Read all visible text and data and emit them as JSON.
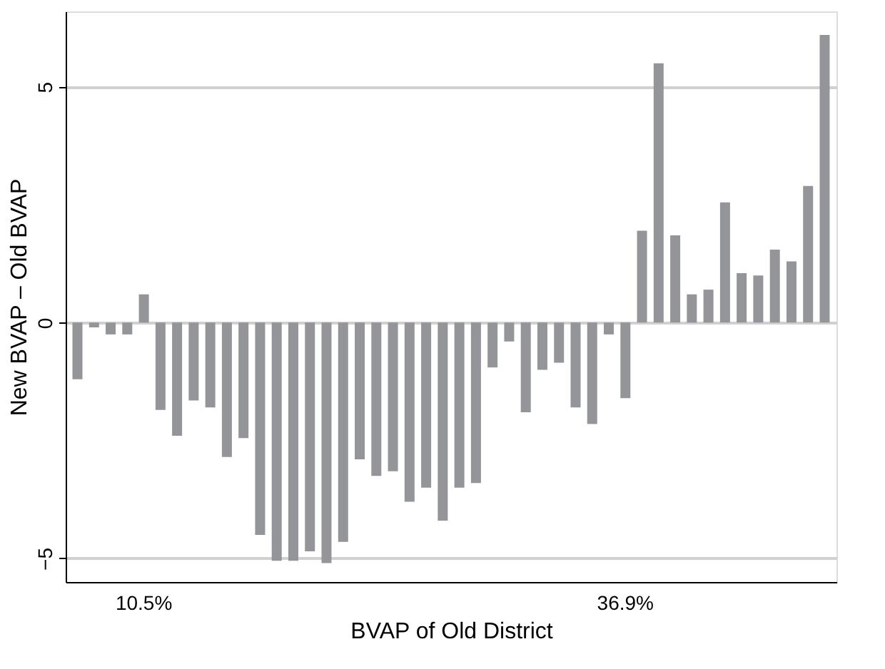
{
  "chart_data": {
    "type": "bar",
    "xlabel": "BVAP of Old District",
    "ylabel": "New BVAP – Old BVAP",
    "categories": [
      null,
      null,
      null,
      null,
      "10.5%",
      null,
      null,
      null,
      null,
      null,
      null,
      null,
      null,
      null,
      null,
      null,
      null,
      null,
      null,
      null,
      null,
      null,
      null,
      null,
      null,
      null,
      null,
      null,
      null,
      null,
      null,
      null,
      null,
      "36.9%",
      null,
      null,
      null,
      null,
      null,
      null,
      null,
      null,
      null,
      null,
      null,
      null
    ],
    "values": [
      -1.2,
      -0.1,
      -0.25,
      -0.25,
      0.6,
      -1.85,
      -2.4,
      -1.65,
      -1.8,
      -2.85,
      -2.45,
      -4.5,
      -5.05,
      -5.05,
      -4.85,
      -5.1,
      -4.65,
      -2.9,
      -3.25,
      -3.15,
      -3.8,
      -3.5,
      -4.2,
      -3.5,
      -3.4,
      -0.95,
      -0.4,
      -1.9,
      -1.0,
      -0.85,
      -1.8,
      -2.15,
      -0.25,
      -1.6,
      1.95,
      5.5,
      1.85,
      0.6,
      0.7,
      2.55,
      1.05,
      1.0,
      1.55,
      1.3,
      2.9,
      6.1
    ],
    "color": "#939598",
    "ylim": [
      -5.5,
      6.6
    ],
    "yticks": [
      -5,
      0,
      5
    ],
    "grid": "y"
  }
}
